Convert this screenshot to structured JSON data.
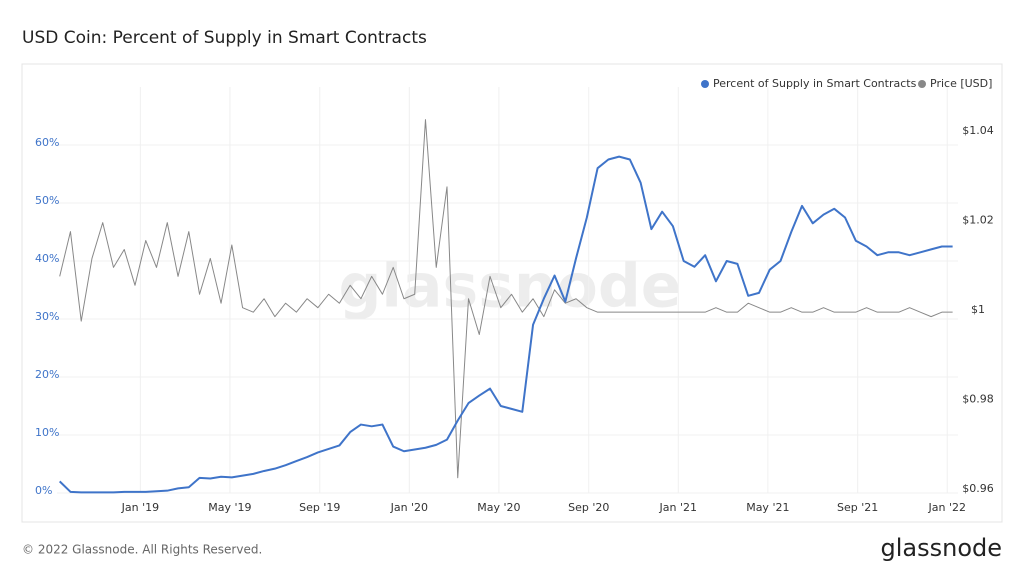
{
  "chart_data": {
    "type": "line",
    "title": "USD Coin: Percent of Supply in Smart Contracts",
    "watermark": "glassnode",
    "x": [
      2018.7,
      2018.74,
      2018.78,
      2018.82,
      2018.86,
      2018.9,
      2018.94,
      2018.98,
      2019.02,
      2019.06,
      2019.1,
      2019.14,
      2019.18,
      2019.22,
      2019.26,
      2019.3,
      2019.34,
      2019.38,
      2019.42,
      2019.46,
      2019.5,
      2019.54,
      2019.58,
      2019.62,
      2019.66,
      2019.7,
      2019.74,
      2019.78,
      2019.82,
      2019.86,
      2019.9,
      2019.94,
      2019.98,
      2020.02,
      2020.06,
      2020.1,
      2020.14,
      2020.18,
      2020.22,
      2020.26,
      2020.3,
      2020.34,
      2020.38,
      2020.42,
      2020.46,
      2020.5,
      2020.54,
      2020.58,
      2020.62,
      2020.66,
      2020.7,
      2020.74,
      2020.78,
      2020.82,
      2020.86,
      2020.9,
      2020.94,
      2020.98,
      2021.02,
      2021.06,
      2021.1,
      2021.14,
      2021.18,
      2021.22,
      2021.26,
      2021.3,
      2021.34,
      2021.38,
      2021.42,
      2021.46,
      2021.5,
      2021.54,
      2021.58,
      2021.62,
      2021.66,
      2021.7,
      2021.74,
      2021.78,
      2021.82,
      2021.86,
      2021.9,
      2021.94,
      2021.98,
      2022.02
    ],
    "series": [
      {
        "name": "Percent of Supply in Smart Contracts",
        "color": "#3f74c9",
        "axis": "y",
        "values": [
          2,
          0.2,
          0.1,
          0.1,
          0.1,
          0.1,
          0.2,
          0.2,
          0.2,
          0.3,
          0.4,
          0.8,
          1.0,
          2.6,
          2.5,
          2.8,
          2.7,
          3.0,
          3.3,
          3.8,
          4.2,
          4.8,
          5.5,
          6.2,
          7.0,
          7.6,
          8.2,
          10.5,
          11.8,
          11.5,
          11.8,
          8.0,
          7.2,
          7.5,
          7.8,
          8.3,
          9.2,
          12.5,
          15.5,
          16.8,
          18.0,
          15.0,
          14.5,
          14.0,
          29.0,
          33.5,
          37.5,
          33.0,
          40.5,
          47.5,
          56.0,
          57.5,
          58.0,
          57.5,
          53.5,
          45.5,
          48.5,
          46.0,
          40.0,
          39.0,
          41.0,
          36.5,
          40.0,
          39.5,
          34.0,
          34.5,
          38.5,
          40.0,
          45.0,
          49.5,
          46.5,
          48.0,
          49.0,
          47.5,
          43.5,
          42.5,
          41.0,
          41.5,
          41.5,
          41.0,
          41.5,
          42.0,
          42.5,
          42.5
        ]
      },
      {
        "name": "Price [USD]",
        "color": "#888888",
        "axis": "y2",
        "values": [
          1.008,
          1.018,
          0.998,
          1.012,
          1.02,
          1.01,
          1.014,
          1.006,
          1.016,
          1.01,
          1.02,
          1.008,
          1.018,
          1.004,
          1.012,
          1.002,
          1.015,
          1.001,
          1.0,
          1.003,
          0.999,
          1.002,
          1.0,
          1.003,
          1.001,
          1.004,
          1.002,
          1.006,
          1.003,
          1.008,
          1.004,
          1.01,
          1.003,
          1.004,
          1.043,
          1.01,
          1.028,
          0.963,
          1.003,
          0.995,
          1.008,
          1.001,
          1.004,
          1.0,
          1.003,
          0.999,
          1.005,
          1.002,
          1.003,
          1.001,
          1.0,
          1.0,
          1.0,
          1.0,
          1.0,
          1.0,
          1.0,
          1.0,
          1.0,
          1.0,
          1.0,
          1.001,
          1.0,
          1.0,
          1.002,
          1.001,
          1.0,
          1.0,
          1.001,
          1.0,
          1.0,
          1.001,
          1.0,
          1.0,
          1.0,
          1.001,
          1.0,
          1.0,
          1.0,
          1.001,
          1.0,
          0.999,
          1.0,
          1.0
        ]
      }
    ],
    "xlim": [
      2018.69,
      2022.04
    ],
    "xticks": [
      {
        "value": 2019,
        "label": "Jan '19"
      },
      {
        "value": 2019.333,
        "label": "May '19"
      },
      {
        "value": 2019.667,
        "label": "Sep '19"
      },
      {
        "value": 2020,
        "label": "Jan '20"
      },
      {
        "value": 2020.333,
        "label": "May '20"
      },
      {
        "value": 2020.667,
        "label": "Sep '20"
      },
      {
        "value": 2021,
        "label": "Jan '21"
      },
      {
        "value": 2021.333,
        "label": "May '21"
      },
      {
        "value": 2021.667,
        "label": "Sep '21"
      },
      {
        "value": 2022,
        "label": "Jan '22"
      }
    ],
    "ylim": [
      0,
      70
    ],
    "yticks": [
      {
        "value": 0,
        "label": "0%"
      },
      {
        "value": 10,
        "label": "10%"
      },
      {
        "value": 20,
        "label": "20%"
      },
      {
        "value": 30,
        "label": "30%"
      },
      {
        "value": 40,
        "label": "40%"
      },
      {
        "value": 50,
        "label": "50%"
      },
      {
        "value": 60,
        "label": "60%"
      }
    ],
    "y2lim": [
      0.9596,
      1.0503
    ],
    "y2ticks": [
      {
        "value": 0.96,
        "label": "$0.96"
      },
      {
        "value": 0.98,
        "label": "$0.98"
      },
      {
        "value": 1,
        "label": "$1"
      },
      {
        "value": 1.02,
        "label": "$1.02"
      },
      {
        "value": 1.04,
        "label": "$1.04"
      }
    ],
    "grid": true,
    "legend": "top-right"
  },
  "footer": {
    "copyright": "© 2022 Glassnode. All Rights Reserved.",
    "brand": "glassnode"
  }
}
